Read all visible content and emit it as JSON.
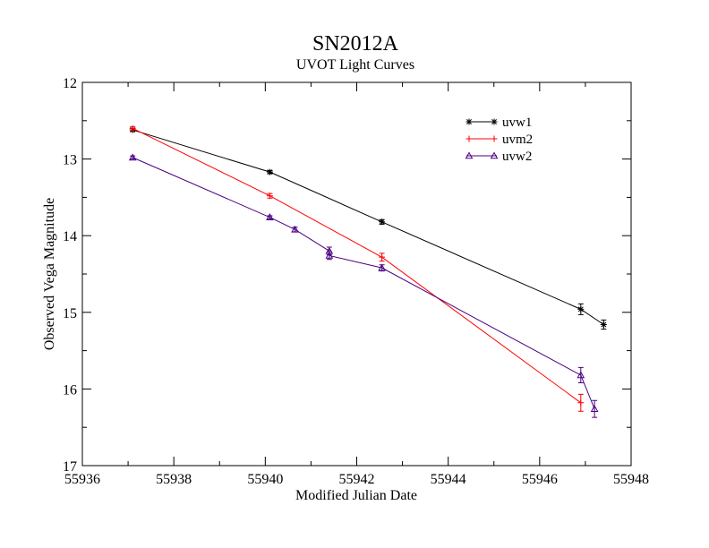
{
  "chart_data": {
    "type": "line",
    "title": "SN2012A",
    "subtitle": "UVOT Light Curves",
    "xlabel": "Modified Julian Date",
    "ylabel": "Observed Vega Magnitude",
    "xlim": [
      55936,
      55948
    ],
    "ylim": [
      12,
      17
    ],
    "y_inverted": true,
    "x_ticks": [
      55936,
      55938,
      55940,
      55942,
      55944,
      55946,
      55948
    ],
    "y_ticks": [
      12,
      13,
      14,
      15,
      16,
      17
    ],
    "legend_position": "top-right",
    "grid": false,
    "series": [
      {
        "name": "uvw1",
        "color": "#000000",
        "marker": "star",
        "x": [
          55937.1,
          55940.1,
          55942.55,
          55946.9,
          55947.4
        ],
        "y": [
          12.62,
          13.17,
          13.82,
          14.96,
          15.16
        ],
        "err": [
          0.02,
          0.02,
          0.03,
          0.07,
          0.06
        ]
      },
      {
        "name": "uvm2",
        "color": "#ff0000",
        "marker": "plus",
        "x": [
          55937.1,
          55940.1,
          55942.55,
          55946.9
        ],
        "y": [
          12.6,
          13.48,
          14.28,
          16.18
        ],
        "err": [
          0.02,
          0.03,
          0.05,
          0.11
        ]
      },
      {
        "name": "uvw2",
        "color": "#4b0082",
        "marker": "triangle",
        "x": [
          55937.1,
          55940.1,
          55940.65,
          55941.4,
          55941.4,
          55942.55,
          55946.9,
          55947.2
        ],
        "y": [
          12.98,
          13.76,
          13.92,
          14.2,
          14.26,
          14.42,
          15.82,
          16.26
        ],
        "err": [
          0.02,
          0.02,
          0.03,
          0.05,
          0.05,
          0.04,
          0.1,
          0.11
        ]
      }
    ]
  }
}
